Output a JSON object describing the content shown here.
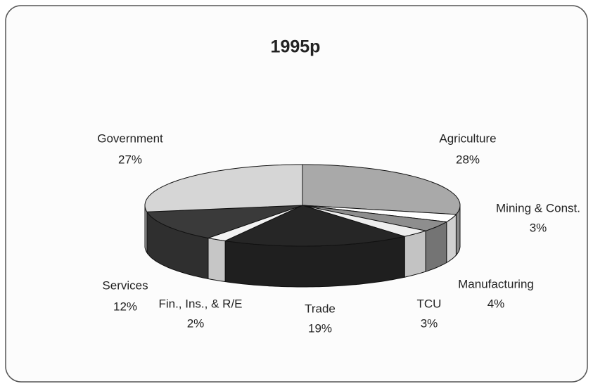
{
  "chart_data": {
    "type": "pie3d",
    "title": "1995p",
    "categories": [
      "Agriculture",
      "Mining & Const.",
      "Manufacturing",
      "TCU",
      "Trade",
      "Fin., Ins., & R/E",
      "Services",
      "Government"
    ],
    "values": [
      28,
      3,
      4,
      3,
      19,
      2,
      12,
      27
    ],
    "value_labels": [
      "28%",
      "3%",
      "4%",
      "3%",
      "19%",
      "2%",
      "12%",
      "27%"
    ],
    "colors": [
      "#a9a9a9",
      "#ffffff",
      "#8e8e8e",
      "#eeeeee",
      "#262626",
      "#f2f2f2",
      "#3a3a3a",
      "#d6d6d6"
    ]
  }
}
